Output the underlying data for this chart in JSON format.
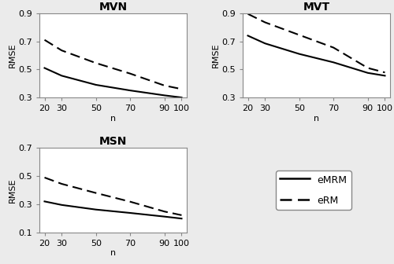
{
  "n_values": [
    20,
    30,
    50,
    70,
    90,
    100
  ],
  "MVN": {
    "eMRM": [
      0.51,
      0.455,
      0.39,
      0.35,
      0.315,
      0.3
    ],
    "eRM": [
      0.71,
      0.635,
      0.545,
      0.47,
      0.385,
      0.36
    ]
  },
  "MVT": {
    "eMRM": [
      0.74,
      0.685,
      0.61,
      0.55,
      0.475,
      0.455
    ],
    "eRM": [
      0.895,
      0.835,
      0.745,
      0.655,
      0.51,
      0.478
    ]
  },
  "MSN": {
    "eMRM": [
      0.32,
      0.295,
      0.262,
      0.238,
      0.212,
      0.198
    ],
    "eRM": [
      0.49,
      0.445,
      0.38,
      0.318,
      0.248,
      0.222
    ]
  },
  "ylim_MVN": [
    0.3,
    0.9
  ],
  "ylim_MVT": [
    0.3,
    0.9
  ],
  "ylim_MSN": [
    0.1,
    0.7
  ],
  "yticks_MVN": [
    0.3,
    0.5,
    0.7,
    0.9
  ],
  "yticks_MVT": [
    0.3,
    0.5,
    0.7,
    0.9
  ],
  "yticks_MSN": [
    0.1,
    0.3,
    0.5,
    0.7
  ],
  "xticks": [
    20,
    30,
    50,
    70,
    90,
    100
  ],
  "xlim": [
    17,
    103
  ],
  "xlabel": "n",
  "ylabel": "RMSE",
  "line_color": "black",
  "background_color": "#ebebeb",
  "plot_bg": "white",
  "title_fontsize": 10,
  "label_fontsize": 8,
  "tick_fontsize": 8,
  "legend_labels": [
    "eMRM",
    "eRM"
  ]
}
